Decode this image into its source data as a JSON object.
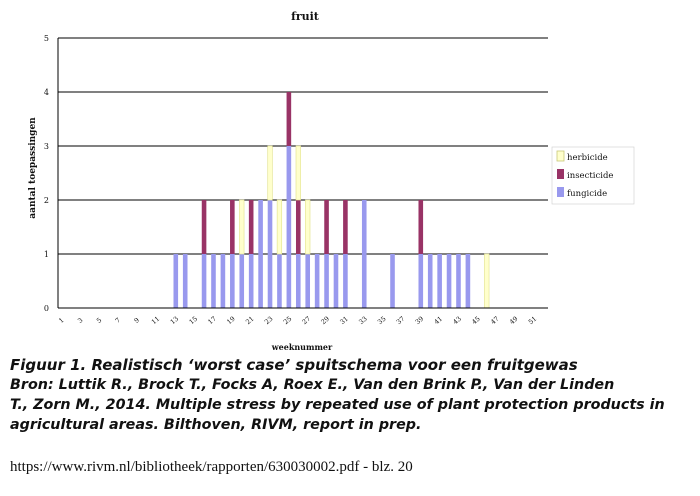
{
  "chart_data": {
    "type": "bar",
    "stacked": true,
    "title": "fruit",
    "xlabel": "weeknummer",
    "ylabel": "aantal toepassingen",
    "ylim": [
      0,
      5
    ],
    "yticks": [
      "0",
      "1",
      "2",
      "3",
      "4",
      "5"
    ],
    "xlim": [
      1,
      52
    ],
    "xticks": [
      "1",
      "3",
      "5",
      "7",
      "9",
      "11",
      "13",
      "15",
      "17",
      "19",
      "21",
      "23",
      "25",
      "27",
      "29",
      "31",
      "33",
      "35",
      "37",
      "39",
      "41",
      "43",
      "45",
      "47",
      "49",
      "51"
    ],
    "grid": true,
    "legend_position": "right",
    "series": [
      {
        "name": "fungicide",
        "color": "#9999ee",
        "values": [
          0,
          0,
          0,
          0,
          0,
          0,
          0,
          0,
          0,
          0,
          0,
          0,
          1,
          1,
          0,
          1,
          1,
          1,
          1,
          1,
          1,
          2,
          2,
          1,
          3,
          1,
          1,
          1,
          1,
          1,
          1,
          0,
          2,
          0,
          0,
          1,
          0,
          0,
          1,
          1,
          1,
          1,
          1,
          1,
          0,
          0,
          0,
          0,
          0,
          0,
          0,
          0
        ]
      },
      {
        "name": "insecticide",
        "color": "#993366",
        "values": [
          0,
          0,
          0,
          0,
          0,
          0,
          0,
          0,
          0,
          0,
          0,
          0,
          0,
          0,
          0,
          1,
          0,
          0,
          1,
          0,
          1,
          0,
          0,
          0,
          1,
          1,
          0,
          0,
          1,
          0,
          1,
          0,
          0,
          0,
          0,
          0,
          0,
          0,
          1,
          0,
          0,
          0,
          0,
          0,
          0,
          0,
          0,
          0,
          0,
          0,
          0,
          0
        ]
      },
      {
        "name": "herbicide",
        "color": "#ffffcc",
        "values": [
          0,
          0,
          0,
          0,
          0,
          0,
          0,
          0,
          0,
          0,
          0,
          0,
          0,
          0,
          0,
          0,
          0,
          0,
          0,
          1,
          0,
          0,
          1,
          1,
          0,
          1,
          1,
          0,
          0,
          0,
          0,
          0,
          0,
          0,
          0,
          0,
          0,
          0,
          0,
          0,
          0,
          0,
          0,
          0,
          0,
          1,
          0,
          0,
          0,
          0,
          0,
          0
        ]
      }
    ]
  },
  "caption": {
    "line1": "Figuur 1. Realistisch ‘worst case’ spuitschema voor een fruitgewas",
    "line2": "Bron: Luttik R., Brock T., Focks A, Roex E., Van den Brink P., Van der Linden",
    "line3": "T., Zorn M., 2014. Multiple stress by repeated use of plant protection products in",
    "line4": "agricultural areas. Bilthoven, RIVM, report in prep."
  },
  "source_url": "https://www.rivm.nl/bibliotheek/rapporten/630030002.pdf  - blz. 20"
}
